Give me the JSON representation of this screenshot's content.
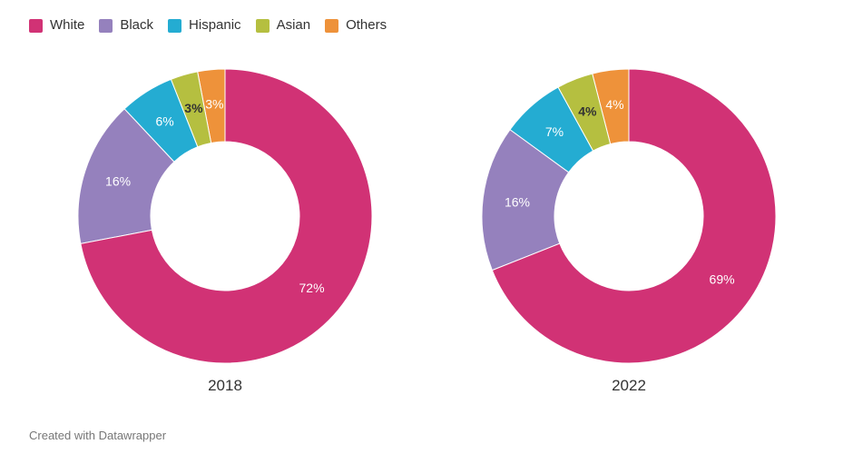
{
  "legend": [
    {
      "label": "White",
      "color": "#d13275"
    },
    {
      "label": "Black",
      "color": "#9581bd"
    },
    {
      "label": "Hispanic",
      "color": "#24acd2"
    },
    {
      "label": "Asian",
      "color": "#b5bf40"
    },
    {
      "label": "Others",
      "color": "#ee923a"
    }
  ],
  "chart_data": [
    {
      "type": "pie",
      "title": "2018",
      "categories": [
        "White",
        "Black",
        "Hispanic",
        "Asian",
        "Others"
      ],
      "values": [
        72,
        16,
        6,
        3,
        3
      ],
      "labels": [
        "72%",
        "16%",
        "6%",
        "3%",
        "3%"
      ],
      "label_colors": [
        "#ffffff",
        "#ffffff",
        "#ffffff",
        "#333333",
        "#ffffff"
      ]
    },
    {
      "type": "pie",
      "title": "2022",
      "categories": [
        "White",
        "Black",
        "Hispanic",
        "Asian",
        "Others"
      ],
      "values": [
        69,
        16,
        7,
        4,
        4
      ],
      "labels": [
        "69%",
        "16%",
        "7%",
        "4%",
        "4%"
      ],
      "label_colors": [
        "#ffffff",
        "#ffffff",
        "#ffffff",
        "#333333",
        "#ffffff"
      ]
    }
  ],
  "footer": "Created with Datawrapper"
}
